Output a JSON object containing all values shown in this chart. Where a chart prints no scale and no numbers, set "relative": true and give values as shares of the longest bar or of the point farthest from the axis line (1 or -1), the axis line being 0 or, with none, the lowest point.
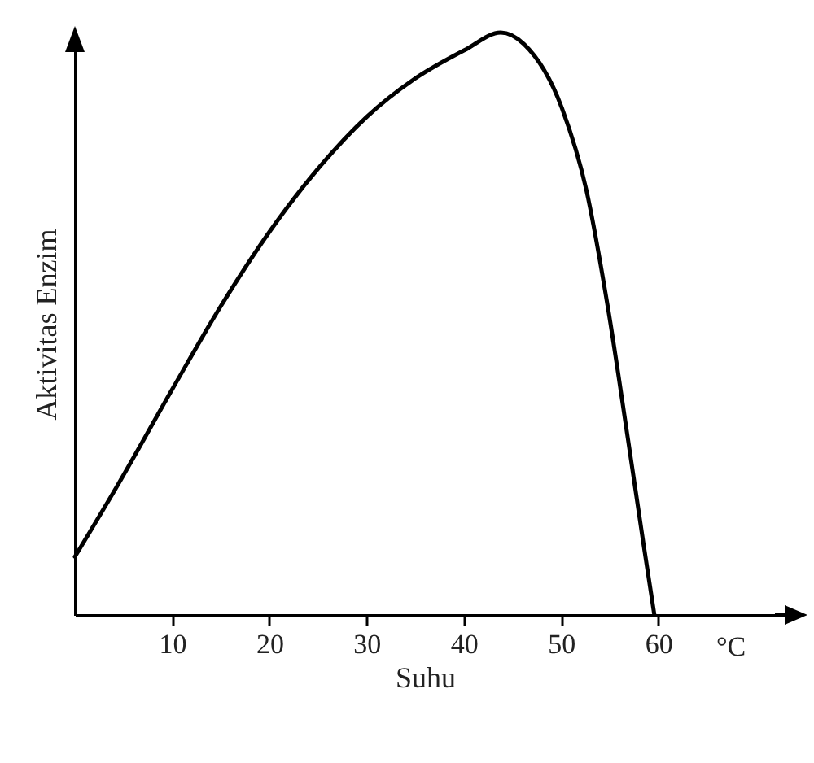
{
  "chart_data": {
    "type": "line",
    "xlabel": "Suhu",
    "ylabel": "Aktivitas Enzim",
    "annotations": [
      "°C"
    ],
    "relative": true,
    "x": [
      0,
      4.3,
      10.1,
      15.0,
      20.1,
      25.2,
      30.0,
      34.9,
      40.1,
      43.8,
      46.2,
      50.1,
      52.6,
      54.8,
      56.9,
      58.5,
      59.6
    ],
    "series": [
      {
        "color": "#000000",
        "values": [
          0.1,
          0.22,
          0.39,
          0.53,
          0.66,
          0.77,
          0.855,
          0.92,
          0.97,
          1,
          0.98,
          0.87,
          0.73,
          0.53,
          0.3,
          0.12,
          0
        ]
      }
    ],
    "xlim": [
      0,
      72
    ],
    "xticks": [
      10,
      20,
      30,
      40,
      50,
      60
    ],
    "grid": false,
    "marker": "none",
    "line_style": "solid"
  }
}
